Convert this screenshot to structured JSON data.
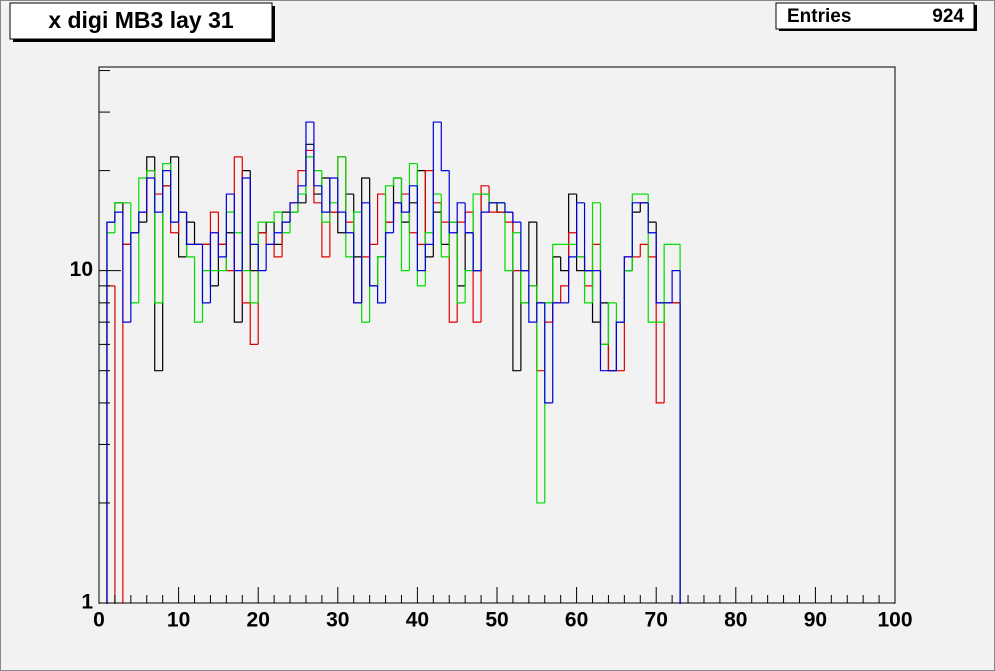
{
  "chart_data": {
    "type": "histogram",
    "title": "x digi MB3 lay 31",
    "stats": {
      "label": "Entries",
      "value": 924
    },
    "log_y": true,
    "xlim": [
      0,
      100
    ],
    "xticks": [
      0,
      10,
      20,
      30,
      40,
      50,
      60,
      70,
      80,
      90,
      100
    ],
    "ylim": [
      1,
      41
    ],
    "yticks": [
      1,
      10
    ],
    "bins": [
      0,
      1,
      2,
      3,
      4,
      5,
      6,
      7,
      8,
      9,
      10,
      11,
      12,
      13,
      14,
      15,
      16,
      17,
      18,
      19,
      20,
      21,
      22,
      23,
      24,
      25,
      26,
      27,
      28,
      29,
      30,
      31,
      32,
      33,
      34,
      35,
      36,
      37,
      38,
      39,
      40,
      41,
      42,
      43,
      44,
      45,
      46,
      47,
      48,
      49,
      50,
      51,
      52,
      53,
      54,
      55,
      56,
      57,
      58,
      59,
      60,
      61,
      62,
      63,
      64,
      65,
      66,
      67,
      68,
      69,
      70,
      71,
      72,
      73,
      74,
      75,
      76,
      77,
      78,
      79,
      80,
      81,
      82,
      83,
      84,
      85,
      86,
      87,
      88,
      89,
      90,
      91,
      92,
      93,
      94,
      95,
      96,
      97,
      98,
      99,
      100
    ],
    "series": [
      {
        "color": "#000000",
        "values": [
          0,
          14,
          16,
          12,
          13,
          14,
          22,
          5,
          18,
          22,
          11,
          14,
          12,
          12,
          9,
          12,
          13,
          7,
          20,
          10,
          13,
          14,
          12,
          15,
          15,
          16,
          24,
          17,
          19,
          15,
          13,
          17,
          11,
          19,
          9,
          11,
          14,
          19,
          14,
          16,
          20,
          11,
          15,
          12,
          14,
          9,
          13,
          10,
          17,
          16,
          15,
          15,
          5,
          10,
          14,
          8,
          8,
          11,
          10,
          17,
          10,
          10,
          7,
          8,
          5,
          7,
          10,
          15,
          16,
          14,
          8,
          8,
          8,
          0,
          0,
          0,
          0,
          0,
          0,
          0,
          0,
          0,
          0,
          0,
          0,
          0,
          0,
          0,
          0,
          0,
          0,
          0,
          0,
          0,
          0,
          0,
          0,
          0,
          0,
          0
        ]
      },
      {
        "color": "#dd0000",
        "values": [
          0,
          9,
          0,
          12,
          13,
          15,
          20,
          17,
          18,
          13,
          15,
          12,
          12,
          12,
          15,
          12,
          10,
          22,
          8,
          6,
          13,
          12,
          11,
          14,
          16,
          20,
          23,
          16,
          11,
          15,
          22,
          14,
          8,
          11,
          12,
          17,
          14,
          16,
          17,
          13,
          12,
          20,
          16,
          14,
          7,
          14,
          15,
          7,
          18,
          15,
          15,
          14,
          10,
          8,
          9,
          5,
          7,
          8,
          9,
          13,
          11,
          9,
          12,
          6,
          5,
          5,
          11,
          11,
          12,
          11,
          4,
          8,
          8,
          0,
          0,
          0,
          0,
          0,
          0,
          0,
          0,
          0,
          0,
          0,
          0,
          0,
          0,
          0,
          0,
          0,
          0,
          0,
          0,
          0,
          0,
          0,
          0,
          0,
          0,
          0
        ]
      },
      {
        "color": "#00dd00",
        "values": [
          0,
          13,
          16,
          16,
          8,
          19,
          20,
          8,
          21,
          14,
          15,
          11,
          7,
          10,
          10,
          10,
          15,
          13,
          10,
          8,
          14,
          14,
          15,
          13,
          15,
          17,
          22,
          20,
          14,
          16,
          22,
          11,
          15,
          7,
          9,
          11,
          18,
          19,
          10,
          21,
          9,
          13,
          17,
          11,
          14,
          8,
          10,
          17,
          17,
          16,
          16,
          10,
          13,
          8,
          9,
          2,
          8,
          12,
          12,
          12,
          11,
          8,
          16,
          6,
          8,
          7,
          10,
          17,
          17,
          7,
          7,
          12,
          12,
          0,
          0,
          0,
          0,
          0,
          0,
          0,
          0,
          0,
          0,
          0,
          0,
          0,
          0,
          0,
          0,
          0,
          0,
          0,
          0,
          0,
          0,
          0,
          0,
          0,
          0,
          0
        ]
      },
      {
        "color": "#0000dd",
        "values": [
          0,
          14,
          15,
          7,
          13,
          15,
          19,
          15,
          20,
          14,
          15,
          12,
          12,
          8,
          13,
          11,
          17,
          10,
          19,
          12,
          10,
          12,
          13,
          14,
          16,
          18,
          28,
          18,
          15,
          19,
          15,
          13,
          8,
          16,
          9,
          8,
          13,
          16,
          15,
          18,
          10,
          12,
          28,
          20,
          13,
          16,
          13,
          10,
          15,
          16,
          16,
          15,
          14,
          10,
          7,
          8,
          4,
          8,
          8,
          11,
          16,
          10,
          10,
          5,
          5,
          7,
          11,
          16,
          16,
          13,
          8,
          8,
          10,
          0,
          0,
          0,
          0,
          0,
          0,
          0,
          0,
          0,
          0,
          0,
          0,
          0,
          0,
          0,
          0,
          0,
          0,
          0,
          0,
          0,
          0,
          0,
          0,
          0,
          0,
          0
        ]
      }
    ]
  }
}
